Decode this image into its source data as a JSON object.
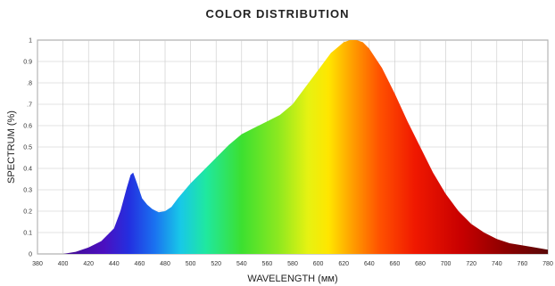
{
  "chart_data": {
    "type": "area",
    "title": "COLOR DISTRIBUTION",
    "xlabel": "WAVELENGTH (мм)",
    "ylabel": "SPECTRUM (%)",
    "xlim": [
      380,
      780
    ],
    "ylim": [
      0,
      1
    ],
    "grid": true,
    "fill": "spectral rainbow gradient (violet to dark red)",
    "x_ticks": [
      "380",
      "400",
      "420",
      "440",
      "460",
      "480",
      "500",
      "520",
      "540",
      "560",
      "580",
      "600",
      "620",
      "640",
      "660",
      "680",
      "700",
      "720",
      "740",
      "760",
      "780"
    ],
    "y_ticks": [
      "0",
      "0.1",
      "0.2",
      "0.3",
      "0.4",
      "0.5",
      "0.6",
      ".7",
      ".8",
      "0.9",
      "1"
    ],
    "x": [
      400,
      410,
      420,
      430,
      440,
      445,
      450,
      453,
      455,
      458,
      462,
      466,
      470,
      475,
      480,
      485,
      490,
      500,
      510,
      520,
      530,
      540,
      550,
      560,
      570,
      580,
      590,
      600,
      610,
      620,
      625,
      630,
      635,
      640,
      650,
      660,
      670,
      680,
      690,
      700,
      710,
      720,
      730,
      740,
      750,
      760,
      770,
      780
    ],
    "y": [
      0.0,
      0.01,
      0.03,
      0.06,
      0.12,
      0.2,
      0.31,
      0.37,
      0.38,
      0.33,
      0.26,
      0.23,
      0.21,
      0.195,
      0.2,
      0.22,
      0.26,
      0.33,
      0.39,
      0.45,
      0.51,
      0.56,
      0.59,
      0.62,
      0.65,
      0.7,
      0.78,
      0.86,
      0.94,
      0.99,
      1.0,
      1.0,
      0.99,
      0.96,
      0.87,
      0.75,
      0.62,
      0.5,
      0.38,
      0.28,
      0.2,
      0.14,
      0.1,
      0.07,
      0.05,
      0.04,
      0.03,
      0.02
    ]
  }
}
